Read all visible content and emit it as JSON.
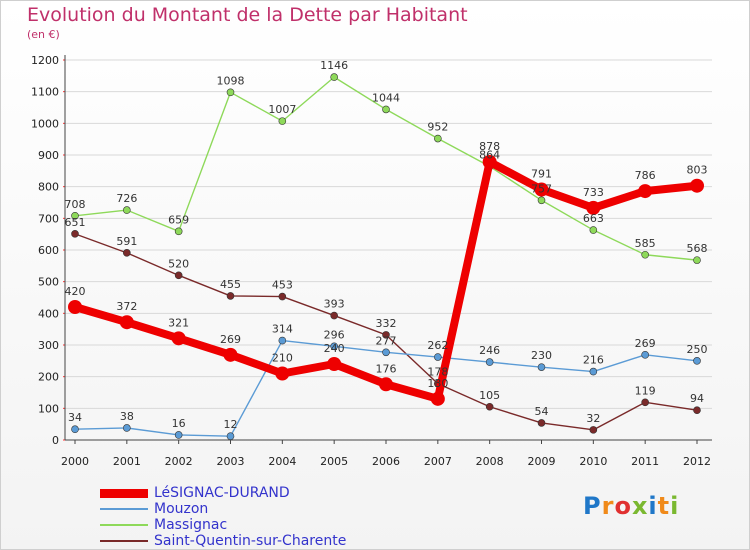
{
  "title": "Evolution du Montant de la Dette par Habitant",
  "subtitle": "(en €)",
  "logo": "Proxiti",
  "chart_data": {
    "type": "line",
    "title": "Evolution du Montant de la Dette par Habitant",
    "subtitle": "(en €)",
    "x": [
      "2000",
      "2001",
      "2002",
      "2003",
      "2004",
      "2005",
      "2006",
      "2007",
      "2008",
      "2009",
      "2010",
      "2011",
      "2012"
    ],
    "ylim": [
      0,
      1200
    ],
    "yticks": [
      0,
      100,
      200,
      300,
      400,
      500,
      600,
      700,
      800,
      900,
      1000,
      1100,
      1200
    ],
    "grid": true,
    "legend_position": "bottom-left",
    "series": [
      {
        "name": "LéSIGNAC-DURAND",
        "color": "#ee0000",
        "values": [
          420,
          372,
          321,
          269,
          210,
          240,
          176,
          130,
          878,
          791,
          733,
          786,
          803
        ],
        "labels": [
          "420",
          "372",
          "321",
          "269",
          "210",
          "240",
          "176",
          "130",
          "878",
          "791",
          "733",
          "786",
          "803"
        ]
      },
      {
        "name": "Mouzon",
        "color": "#5b9bd5",
        "values": [
          34,
          38,
          16,
          12,
          314,
          296,
          277,
          262,
          246,
          230,
          216,
          269,
          250
        ],
        "labels": [
          "34",
          "38",
          "16",
          "12",
          "314",
          "296",
          "277",
          "262",
          "246",
          "230",
          "216",
          "269",
          "250"
        ]
      },
      {
        "name": "Massignac",
        "color": "#8ed95a",
        "values": [
          708,
          726,
          659,
          1098,
          1007,
          1146,
          1044,
          952,
          864,
          757,
          663,
          585,
          568
        ],
        "labels": [
          "708",
          "726",
          "659",
          "1098",
          "1007",
          "1146",
          "1044",
          "952",
          "864",
          "757",
          "663",
          "585",
          "568"
        ]
      },
      {
        "name": "Saint-Quentin-sur-Charente",
        "color": "#7a2a2a",
        "values": [
          651,
          591,
          520,
          455,
          453,
          393,
          332,
          178,
          105,
          54,
          32,
          119,
          94
        ],
        "labels": [
          "651",
          "591",
          "520",
          "455",
          "453",
          "393",
          "332",
          "178",
          "105",
          "54",
          "32",
          "119",
          "94"
        ]
      }
    ]
  }
}
